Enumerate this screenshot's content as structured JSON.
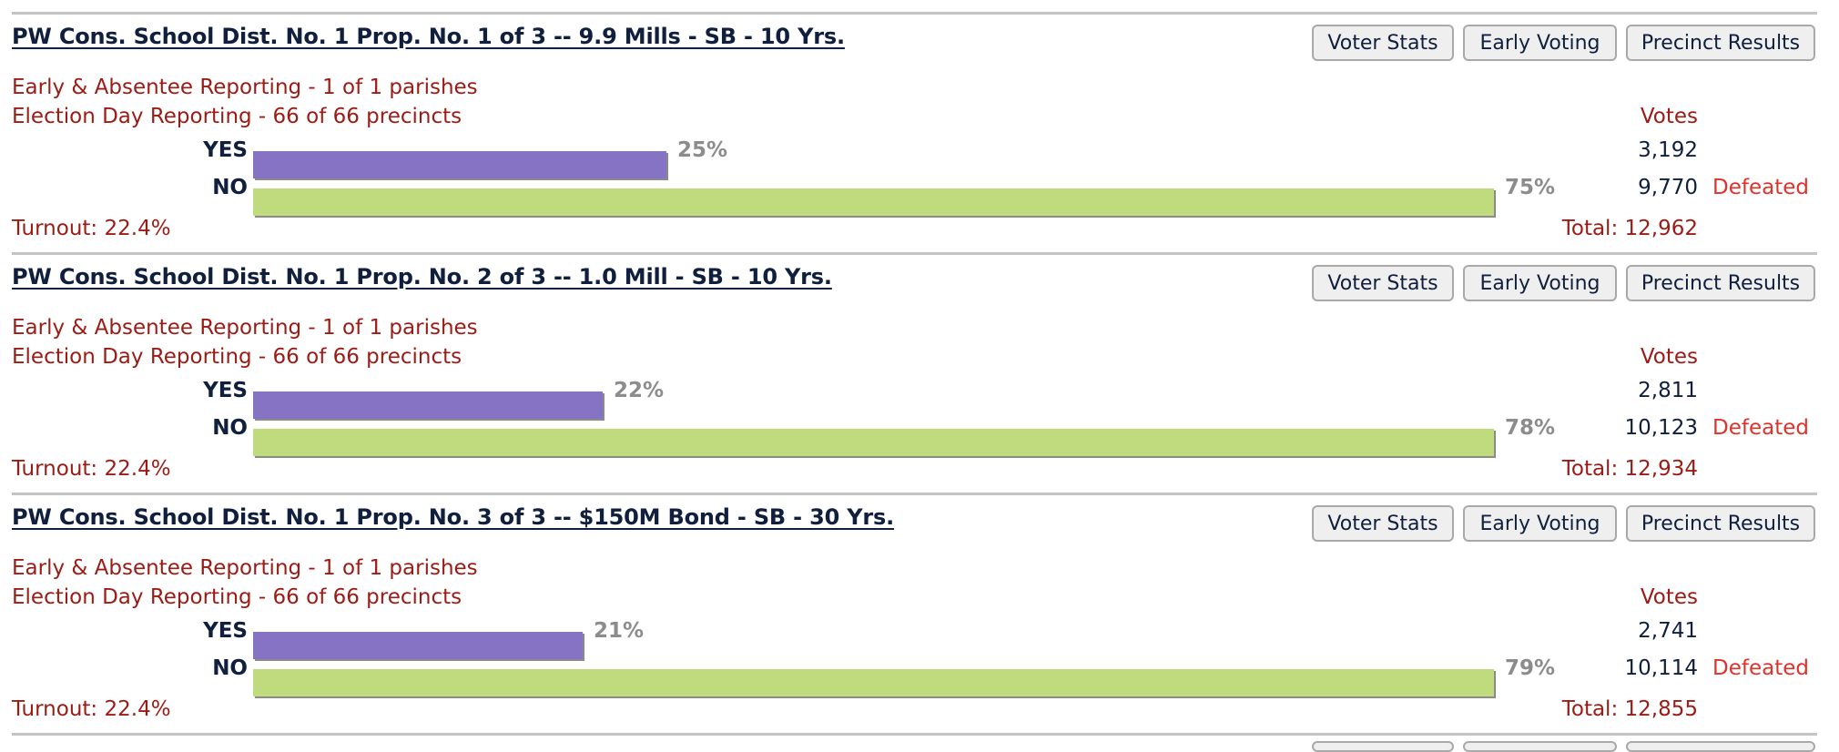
{
  "bar_max_fraction_reference": "max",
  "colors": {
    "yes": "#8673c3",
    "no": "#c0db7e",
    "defeated": "#e0322a",
    "reporting": "#9b1b15",
    "title": "#0f1f3d"
  },
  "buttons": {
    "voter_stats": "Voter Stats",
    "early_voting": "Early Voting",
    "precinct_results": "Precinct Results"
  },
  "votes_header": "Votes",
  "races": [
    {
      "title": "PW Cons. School Dist. No. 1 Prop. No. 1 of 3 -- 9.9 Mills - SB - 10 Yrs.",
      "early_reporting": "Early & Absentee Reporting - 1 of 1 parishes",
      "election_day_reporting": "Election Day Reporting - 66 of 66 precincts",
      "choices": [
        {
          "label": "YES",
          "percent": 25,
          "percent_text": "25%",
          "votes": "3,192",
          "status": ""
        },
        {
          "label": "NO",
          "percent": 75,
          "percent_text": "75%",
          "votes": "9,770",
          "status": "Defeated"
        }
      ],
      "turnout": "Turnout: 22.4%",
      "total": "Total: 12,962"
    },
    {
      "title": "PW Cons. School Dist. No. 1 Prop. No. 2 of 3 -- 1.0 Mill - SB - 10 Yrs.",
      "early_reporting": "Early & Absentee Reporting - 1 of 1 parishes",
      "election_day_reporting": "Election Day Reporting - 66 of 66 precincts",
      "choices": [
        {
          "label": "YES",
          "percent": 22,
          "percent_text": "22%",
          "votes": "2,811",
          "status": ""
        },
        {
          "label": "NO",
          "percent": 78,
          "percent_text": "78%",
          "votes": "10,123",
          "status": "Defeated"
        }
      ],
      "turnout": "Turnout: 22.4%",
      "total": "Total: 12,934"
    },
    {
      "title": "PW Cons. School Dist. No. 1 Prop. No. 3 of 3 -- $150M Bond - SB - 30 Yrs.",
      "early_reporting": "Early & Absentee Reporting - 1 of 1 parishes",
      "election_day_reporting": "Election Day Reporting - 66 of 66 precincts",
      "choices": [
        {
          "label": "YES",
          "percent": 21,
          "percent_text": "21%",
          "votes": "2,741",
          "status": ""
        },
        {
          "label": "NO",
          "percent": 79,
          "percent_text": "79%",
          "votes": "10,114",
          "status": "Defeated"
        }
      ],
      "turnout": "Turnout: 22.4%",
      "total": "Total: 12,855"
    }
  ]
}
